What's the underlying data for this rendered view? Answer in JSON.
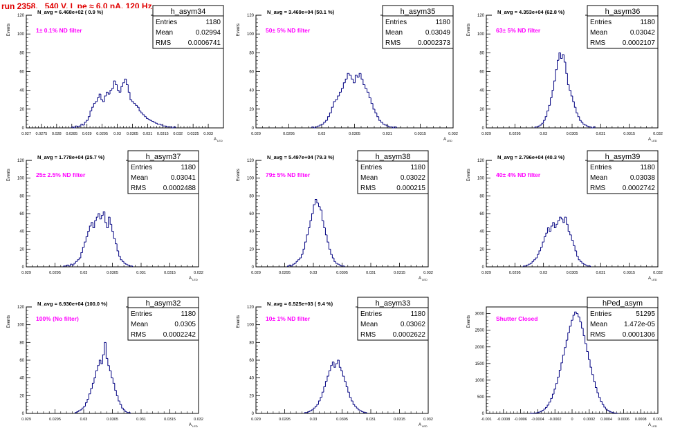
{
  "run_title": "run 2358,   540 V, I_pe ≈ 6.0 nA, 120 Hz",
  "colors": {
    "hist": "#000080",
    "annotation": "#ff00ff",
    "title": "#e00000"
  },
  "stat_labels": {
    "entries": "Entries",
    "mean": "Mean",
    "rms": "RMS"
  },
  "axis": {
    "ylabel": "Events",
    "xlabel": "A",
    "xlabel_sub": "LED"
  },
  "chart_data": [
    {
      "type": "bar",
      "name": "h_asym34",
      "navg": "N_avg = 6.468e+02 ( 0.9 %)",
      "filter": "1± 0.1% ND filter",
      "entries": "1180",
      "mean": "0.02994",
      "rms": "0.0006741",
      "xlim": [
        0.027,
        0.0335
      ],
      "ylim": [
        0,
        120
      ],
      "xticks": [
        "0.027",
        "0.0275",
        "0.028",
        "0.0285",
        "0.029",
        "0.0295",
        "0.03",
        "0.0305",
        "0.031",
        "0.0315",
        "0.032",
        "0.0325",
        "0.033"
      ],
      "yticks": [
        "0",
        "20",
        "40",
        "60",
        "80",
        "100",
        "120"
      ],
      "bin_min": 0.0285,
      "bin_width": 6e-05,
      "counts": [
        1,
        0,
        2,
        1,
        2,
        4,
        3,
        6,
        8,
        12,
        18,
        22,
        26,
        28,
        32,
        36,
        30,
        28,
        34,
        38,
        36,
        40,
        42,
        50,
        46,
        40,
        38,
        44,
        48,
        52,
        46,
        38,
        30,
        28,
        26,
        24,
        22,
        18,
        16,
        14,
        12,
        10,
        9,
        8,
        7,
        6,
        5,
        4,
        4,
        3,
        2,
        2,
        1,
        1,
        1,
        0,
        1
      ]
    },
    {
      "type": "bar",
      "name": "h_asym35",
      "navg": "N_avg = 3.469e+04 (50.1 %)",
      "filter": "50± 5% ND filter",
      "entries": "1180",
      "mean": "0.03049",
      "rms": "0.0002373",
      "xlim": [
        0.029,
        0.032
      ],
      "ylim": [
        0,
        120
      ],
      "xticks": [
        "0.029",
        "0.0295",
        "0.03",
        "0.0305",
        "0.031",
        "0.0315",
        "0.032"
      ],
      "yticks": [
        "0",
        "20",
        "40",
        "60",
        "80",
        "100",
        "120"
      ],
      "bin_min": 0.02985,
      "bin_width": 3e-05,
      "counts": [
        1,
        0,
        1,
        2,
        3,
        4,
        6,
        8,
        12,
        16,
        22,
        28,
        30,
        34,
        38,
        42,
        48,
        52,
        58,
        56,
        52,
        48,
        56,
        54,
        58,
        52,
        46,
        42,
        38,
        32,
        26,
        20,
        16,
        12,
        8,
        6,
        4,
        3,
        2,
        1,
        1,
        0,
        1
      ]
    },
    {
      "type": "bar",
      "name": "h_asym36",
      "navg": "N_avg = 4.353e+04 (62.8 %)",
      "filter": "63± 5% ND filter",
      "entries": "1180",
      "mean": "0.03042",
      "rms": "0.0002107",
      "xlim": [
        0.029,
        0.032
      ],
      "ylim": [
        0,
        120
      ],
      "xticks": [
        "0.029",
        "0.0295",
        "0.03",
        "0.0305",
        "0.031",
        "0.0315",
        "0.032"
      ],
      "yticks": [
        "0",
        "20",
        "40",
        "60",
        "80",
        "100",
        "120"
      ],
      "bin_min": 0.02985,
      "bin_width": 3e-05,
      "counts": [
        1,
        1,
        2,
        3,
        5,
        8,
        12,
        18,
        24,
        32,
        40,
        50,
        62,
        72,
        80,
        74,
        78,
        70,
        58,
        46,
        40,
        34,
        28,
        22,
        16,
        12,
        8,
        6,
        4,
        3,
        2,
        1,
        1,
        0,
        1
      ]
    },
    {
      "type": "bar",
      "name": "h_asym37",
      "navg": "N_avg = 1.778e+04 (25.7 %)",
      "filter": "25± 2.5% ND filter",
      "entries": "1180",
      "mean": "0.03041",
      "rms": "0.0002488",
      "xlim": [
        0.029,
        0.032
      ],
      "ylim": [
        0,
        120
      ],
      "xticks": [
        "0.029",
        "0.0295",
        "0.03",
        "0.0305",
        "0.031",
        "0.0315",
        "0.032"
      ],
      "yticks": [
        "0",
        "20",
        "40",
        "60",
        "80",
        "100",
        "120"
      ],
      "bin_min": 0.02965,
      "bin_width": 3e-05,
      "counts": [
        1,
        1,
        2,
        1,
        3,
        2,
        4,
        6,
        8,
        10,
        16,
        22,
        28,
        34,
        40,
        46,
        50,
        44,
        52,
        56,
        60,
        54,
        58,
        62,
        50,
        44,
        56,
        48,
        40,
        32,
        26,
        18,
        12,
        8,
        6,
        4,
        3,
        2,
        1,
        1
      ]
    },
    {
      "type": "bar",
      "name": "h_asym38",
      "navg": "N_avg = 5.497e+04 (79.3 %)",
      "filter": "79± 5% ND filter",
      "entries": "1180",
      "mean": "0.03022",
      "rms": "0.000215",
      "xlim": [
        0.029,
        0.032
      ],
      "ylim": [
        0,
        120
      ],
      "xticks": [
        "0.029",
        "0.0295",
        "0.03",
        "0.0305",
        "0.031",
        "0.0315",
        "0.032"
      ],
      "yticks": [
        "0",
        "20",
        "40",
        "60",
        "80",
        "100",
        "120"
      ],
      "bin_min": 0.02955,
      "bin_width": 3e-05,
      "counts": [
        1,
        2,
        1,
        3,
        4,
        6,
        8,
        10,
        14,
        20,
        28,
        36,
        44,
        52,
        60,
        70,
        76,
        72,
        68,
        64,
        52,
        44,
        36,
        28,
        20,
        14,
        10,
        6,
        4,
        3,
        2,
        1,
        1
      ]
    },
    {
      "type": "bar",
      "name": "h_asym39",
      "navg": "N_avg = 2.796e+04 (40.3 %)",
      "filter": "40± 4% ND filter",
      "entries": "1180",
      "mean": "0.03038",
      "rms": "0.0002742",
      "xlim": [
        0.029,
        0.032
      ],
      "ylim": [
        0,
        120
      ],
      "xticks": [
        "0.029",
        "0.0295",
        "0.03",
        "0.0305",
        "0.031",
        "0.0315",
        "0.032"
      ],
      "yticks": [
        "0",
        "20",
        "40",
        "60",
        "80",
        "100",
        "120"
      ],
      "bin_min": 0.02965,
      "bin_width": 3e-05,
      "counts": [
        1,
        1,
        2,
        3,
        4,
        6,
        8,
        10,
        14,
        18,
        22,
        28,
        34,
        38,
        44,
        40,
        46,
        50,
        44,
        48,
        52,
        56,
        54,
        50,
        56,
        48,
        40,
        36,
        30,
        24,
        18,
        12,
        8,
        6,
        4,
        3,
        2,
        1,
        1
      ]
    },
    {
      "type": "bar",
      "name": "h_asym32",
      "navg": "N_avg = 6.930e+04 (100.0 %)",
      "filter": "100% (No filter)",
      "entries": "1180",
      "mean": "0.0305",
      "rms": "0.0002242",
      "xlim": [
        0.029,
        0.032
      ],
      "ylim": [
        0,
        120
      ],
      "xticks": [
        "0.029",
        "0.0295",
        "0.03",
        "0.0305",
        "0.031",
        "0.0315",
        "0.032"
      ],
      "yticks": [
        "0",
        "20",
        "40",
        "60",
        "80",
        "100",
        "120"
      ],
      "bin_min": 0.02985,
      "bin_width": 3e-05,
      "counts": [
        1,
        2,
        3,
        4,
        6,
        8,
        12,
        16,
        22,
        28,
        34,
        40,
        48,
        54,
        60,
        56,
        66,
        80,
        62,
        54,
        48,
        40,
        34,
        26,
        20,
        14,
        10,
        6,
        4,
        2,
        1,
        1
      ]
    },
    {
      "type": "bar",
      "name": "h_asym33",
      "navg": "N_avg = 6.525e+03 ( 9.4 %)",
      "filter": "10± 1% ND filter",
      "entries": "1180",
      "mean": "0.03062",
      "rms": "0.0002622",
      "xlim": [
        0.029,
        0.032
      ],
      "ylim": [
        0,
        120
      ],
      "xticks": [
        "0.029",
        "0.0295",
        "0.03",
        "0.0305",
        "0.031",
        "0.0315",
        "0.032"
      ],
      "yticks": [
        "0",
        "20",
        "40",
        "60",
        "80",
        "100",
        "120"
      ],
      "bin_min": 0.02985,
      "bin_width": 3e-05,
      "counts": [
        1,
        1,
        2,
        3,
        4,
        6,
        8,
        10,
        14,
        18,
        24,
        30,
        36,
        42,
        48,
        54,
        58,
        52,
        56,
        60,
        52,
        48,
        42,
        36,
        30,
        24,
        18,
        14,
        10,
        8,
        6,
        4,
        3,
        2,
        1,
        1
      ]
    },
    {
      "type": "bar",
      "name": "hPed_asym",
      "navg": "",
      "filter": "Shutter Closed",
      "entries": "51295",
      "mean": "1.472e-05",
      "rms": "0.0001306",
      "xlim": [
        -0.001,
        0.001
      ],
      "ylim": [
        0,
        3200
      ],
      "xticks": [
        "-0.001",
        "-0.0008",
        "-0.0006",
        "-0.0004",
        "-0.0002",
        "0",
        "0.0002",
        "0.0004",
        "0.0006",
        "0.0008",
        "0.001"
      ],
      "yticks": [
        "0",
        "500",
        "1000",
        "1500",
        "2000",
        "2500",
        "3000"
      ],
      "bin_min": -0.00049,
      "bin_width": 2e-05,
      "counts": [
        2,
        4,
        8,
        14,
        24,
        40,
        60,
        90,
        130,
        180,
        250,
        340,
        450,
        580,
        730,
        900,
        1090,
        1300,
        1520,
        1750,
        1980,
        2200,
        2420,
        2620,
        2800,
        2950,
        3050,
        3000,
        2900,
        2750,
        2560,
        2340,
        2100,
        1860,
        1620,
        1390,
        1170,
        960,
        780,
        620,
        480,
        360,
        270,
        190,
        130,
        90,
        60,
        40,
        24,
        14,
        8
      ]
    }
  ]
}
